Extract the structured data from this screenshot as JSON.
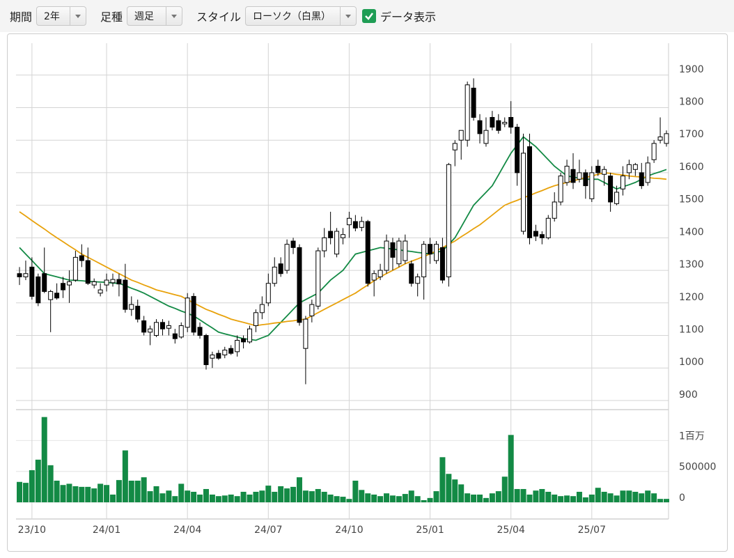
{
  "controls": {
    "period_label": "期間",
    "period_value": "2年",
    "interval_label": "足種",
    "interval_value": "週足",
    "style_label": "スタイル",
    "style_value": "ローソク（白黒）",
    "show_data_label": "データ表示",
    "show_data_checked": true
  },
  "chart_data": {
    "type": "candlestick",
    "categories": [
      null,
      null,
      "23/10",
      null,
      null,
      null,
      null,
      null,
      null,
      null,
      null,
      null,
      null,
      null,
      "24/01",
      null,
      null,
      null,
      null,
      null,
      null,
      null,
      null,
      null,
      null,
      null,
      null,
      "24/04",
      null,
      null,
      null,
      null,
      null,
      null,
      null,
      null,
      null,
      null,
      null,
      null,
      "24/07",
      null,
      null,
      null,
      null,
      null,
      null,
      null,
      null,
      null,
      null,
      null,
      null,
      "24/10",
      null,
      null,
      null,
      null,
      null,
      null,
      null,
      null,
      null,
      null,
      null,
      null,
      "25/01",
      null,
      null,
      null,
      null,
      null,
      null,
      null,
      null,
      null,
      null,
      null,
      null,
      "25/04",
      null,
      null,
      null,
      null,
      null,
      null,
      null,
      null,
      null,
      null,
      null,
      null,
      "25/07",
      null,
      null,
      null,
      null,
      null,
      null,
      null,
      null,
      null,
      null,
      null,
      null
    ],
    "open": [
      1290,
      1280,
      1310,
      1280,
      1290,
      1210,
      1230,
      1260,
      1255,
      1270,
      1345,
      1330,
      1255,
      1230,
      1255,
      1262,
      1272,
      1270,
      1180,
      1190,
      1145,
      1110,
      1100,
      1140,
      1122,
      1105,
      1095,
      1125,
      1220,
      1125,
      1100,
      1030,
      1045,
      1040,
      1060,
      1050,
      1090,
      1080,
      1130,
      1170,
      1200,
      1260,
      1320,
      1300,
      1390,
      1370,
      1060,
      1160,
      1190,
      1360,
      1420,
      1350,
      1400,
      1440,
      1450,
      1432,
      1450,
      1270,
      1280,
      1300,
      1385,
      1320,
      1330,
      1320,
      1260,
      1280,
      1380,
      1330,
      1370,
      1280,
      1670,
      1700,
      1700,
      1860,
      1760,
      1690,
      1770,
      1760,
      1750,
      1770,
      1740,
      1420,
      1680,
      1420,
      1410,
      1400,
      1460,
      1510,
      1570,
      1610,
      1580,
      1600,
      1520,
      1620,
      1595,
      1590,
      1505,
      1550,
      1600,
      1610,
      1600,
      1570,
      1640,
      1700,
      1690
    ],
    "high": [
      1310,
      1330,
      1340,
      1290,
      1370,
      1240,
      1260,
      1280,
      1300,
      1360,
      1380,
      1370,
      1275,
      1260,
      1290,
      1290,
      1290,
      1320,
      1220,
      1210,
      1160,
      1130,
      1150,
      1150,
      1145,
      1120,
      1140,
      1230,
      1230,
      1140,
      1105,
      1050,
      1055,
      1065,
      1070,
      1100,
      1100,
      1130,
      1180,
      1220,
      1290,
      1340,
      1340,
      1395,
      1400,
      1380,
      1160,
      1210,
      1370,
      1430,
      1480,
      1430,
      1430,
      1480,
      1470,
      1465,
      1455,
      1300,
      1320,
      1410,
      1400,
      1400,
      1410,
      1330,
      1290,
      1390,
      1400,
      1390,
      1400,
      1630,
      1700,
      1730,
      1880,
      1890,
      1780,
      1770,
      1790,
      1780,
      1770,
      1820,
      1750,
      1720,
      1720,
      1440,
      1420,
      1470,
      1540,
      1600,
      1640,
      1660,
      1640,
      1610,
      1620,
      1640,
      1620,
      1600,
      1560,
      1620,
      1640,
      1630,
      1630,
      1650,
      1700,
      1770,
      1730
    ],
    "low": [
      1255,
      1270,
      1210,
      1190,
      1230,
      1110,
      1210,
      1215,
      1200,
      1265,
      1310,
      1255,
      1245,
      1220,
      1235,
      1250,
      1220,
      1170,
      1160,
      1140,
      1100,
      1070,
      1095,
      1100,
      1100,
      1075,
      1090,
      1110,
      1100,
      1090,
      995,
      1000,
      1025,
      1030,
      1040,
      1035,
      1060,
      1075,
      1110,
      1150,
      1190,
      1250,
      1280,
      1290,
      1350,
      1130,
      950,
      1140,
      1180,
      1340,
      1380,
      1340,
      1380,
      1400,
      1420,
      1420,
      1250,
      1220,
      1270,
      1290,
      1300,
      1310,
      1320,
      1250,
      1220,
      1210,
      1320,
      1320,
      1260,
      1250,
      1620,
      1640,
      1680,
      1760,
      1690,
      1680,
      1730,
      1720,
      1740,
      1720,
      1560,
      1410,
      1380,
      1390,
      1380,
      1395,
      1450,
      1500,
      1560,
      1550,
      1570,
      1520,
      1510,
      1590,
      1560,
      1480,
      1500,
      1530,
      1580,
      1590,
      1550,
      1560,
      1630,
      1690,
      1680
    ],
    "close": [
      1280,
      1290,
      1220,
      1200,
      1235,
      1235,
      1215,
      1240,
      1265,
      1340,
      1330,
      1260,
      1265,
      1240,
      1270,
      1272,
      1258,
      1180,
      1195,
      1150,
      1110,
      1120,
      1140,
      1120,
      1130,
      1090,
      1130,
      1215,
      1110,
      1100,
      1010,
      1040,
      1030,
      1055,
      1045,
      1085,
      1080,
      1120,
      1170,
      1195,
      1260,
      1310,
      1290,
      1380,
      1370,
      1140,
      1150,
      1195,
      1360,
      1400,
      1400,
      1420,
      1410,
      1460,
      1430,
      1450,
      1260,
      1290,
      1300,
      1390,
      1340,
      1390,
      1390,
      1260,
      1280,
      1380,
      1350,
      1380,
      1270,
      1625,
      1690,
      1730,
      1870,
      1770,
      1720,
      1730,
      1740,
      1730,
      1755,
      1740,
      1600,
      1660,
      1400,
      1405,
      1400,
      1460,
      1510,
      1590,
      1620,
      1570,
      1600,
      1560,
      1600,
      1600,
      1610,
      1510,
      1540,
      1590,
      1625,
      1625,
      1560,
      1630,
      1690,
      1710,
      1720
    ],
    "up_color": "#ffffff",
    "down_color": "#000000",
    "moving_averages": [
      {
        "color": "#138a45",
        "values": [
          1370,
          1350,
          1330,
          1310,
          1290,
          1285,
          1280,
          1275,
          1270,
          1269,
          1268,
          1266,
          1265,
          1264,
          1263,
          1261,
          1260,
          1253,
          1245,
          1238,
          1230,
          1220,
          1210,
          1200,
          1190,
          1183,
          1175,
          1168,
          1160,
          1148,
          1135,
          1123,
          1110,
          1105,
          1100,
          1095,
          1090,
          1088,
          1085,
          1093,
          1100,
          1120,
          1140,
          1160,
          1180,
          1200,
          1210,
          1220,
          1230,
          1250,
          1270,
          1285,
          1300,
          1325,
          1350,
          1355,
          1360,
          1365,
          1370,
          1368,
          1365,
          1363,
          1360,
          1358,
          1355,
          1353,
          1350,
          1355,
          1360,
          1380,
          1400,
          1433,
          1467,
          1500,
          1520,
          1540,
          1560,
          1593,
          1627,
          1660,
          1685,
          1710,
          1695,
          1680,
          1660,
          1640,
          1620,
          1605,
          1590,
          1587,
          1583,
          1580,
          1580,
          1580,
          1570,
          1560,
          1550,
          1557,
          1563,
          1570,
          1580,
          1590,
          1597,
          1603,
          1610
        ]
      },
      {
        "color": "#e8a20c",
        "values": [
          1480,
          1467,
          1453,
          1440,
          1427,
          1413,
          1400,
          1388,
          1375,
          1363,
          1350,
          1340,
          1330,
          1320,
          1310,
          1300,
          1290,
          1280,
          1270,
          1263,
          1255,
          1248,
          1240,
          1235,
          1230,
          1225,
          1220,
          1210,
          1200,
          1190,
          1180,
          1173,
          1165,
          1158,
          1150,
          1145,
          1140,
          1135,
          1130,
          1133,
          1135,
          1138,
          1140,
          1143,
          1145,
          1148,
          1150,
          1160,
          1170,
          1180,
          1190,
          1200,
          1210,
          1220,
          1230,
          1243,
          1255,
          1268,
          1280,
          1290,
          1300,
          1310,
          1320,
          1328,
          1335,
          1343,
          1350,
          1360,
          1370,
          1380,
          1390,
          1403,
          1415,
          1428,
          1440,
          1455,
          1470,
          1485,
          1500,
          1508,
          1515,
          1523,
          1530,
          1538,
          1545,
          1553,
          1560,
          1565,
          1570,
          1575,
          1580,
          1585,
          1590,
          1595,
          1600,
          1598,
          1595,
          1593,
          1590,
          1588,
          1587,
          1585,
          1583,
          1582,
          1580
        ]
      }
    ],
    "ylim": [
      872,
      1998
    ],
    "yticks": [
      900,
      1000,
      1100,
      1200,
      1300,
      1400,
      1500,
      1600,
      1700,
      1800,
      1900
    ],
    "grid": true,
    "volume": {
      "color": "#138a45",
      "ylim": [
        -270000,
        1500000
      ],
      "yticks": [
        0,
        500000,
        {
          "value": 1000000,
          "label": "1百万"
        }
      ],
      "values": [
        330000,
        315000,
        520000,
        690000,
        1380000,
        600000,
        350000,
        280000,
        300000,
        260000,
        250000,
        250000,
        225000,
        300000,
        280000,
        125000,
        360000,
        840000,
        350000,
        350000,
        405000,
        180000,
        260000,
        145000,
        190000,
        100000,
        300000,
        190000,
        170000,
        125000,
        215000,
        125000,
        100000,
        110000,
        125000,
        100000,
        170000,
        125000,
        170000,
        190000,
        270000,
        170000,
        260000,
        225000,
        250000,
        405000,
        190000,
        180000,
        215000,
        170000,
        125000,
        100000,
        90000,
        55000,
        350000,
        200000,
        145000,
        125000,
        100000,
        145000,
        110000,
        100000,
        135000,
        190000,
        100000,
        35000,
        70000,
        180000,
        730000,
        460000,
        370000,
        290000,
        145000,
        125000,
        125000,
        70000,
        145000,
        180000,
        415000,
        1090000,
        215000,
        215000,
        125000,
        190000,
        215000,
        170000,
        125000,
        100000,
        110000,
        100000,
        170000,
        80000,
        125000,
        235000,
        170000,
        145000,
        110000,
        190000,
        190000,
        170000,
        145000,
        190000,
        145000,
        55000,
        55000
      ]
    }
  }
}
